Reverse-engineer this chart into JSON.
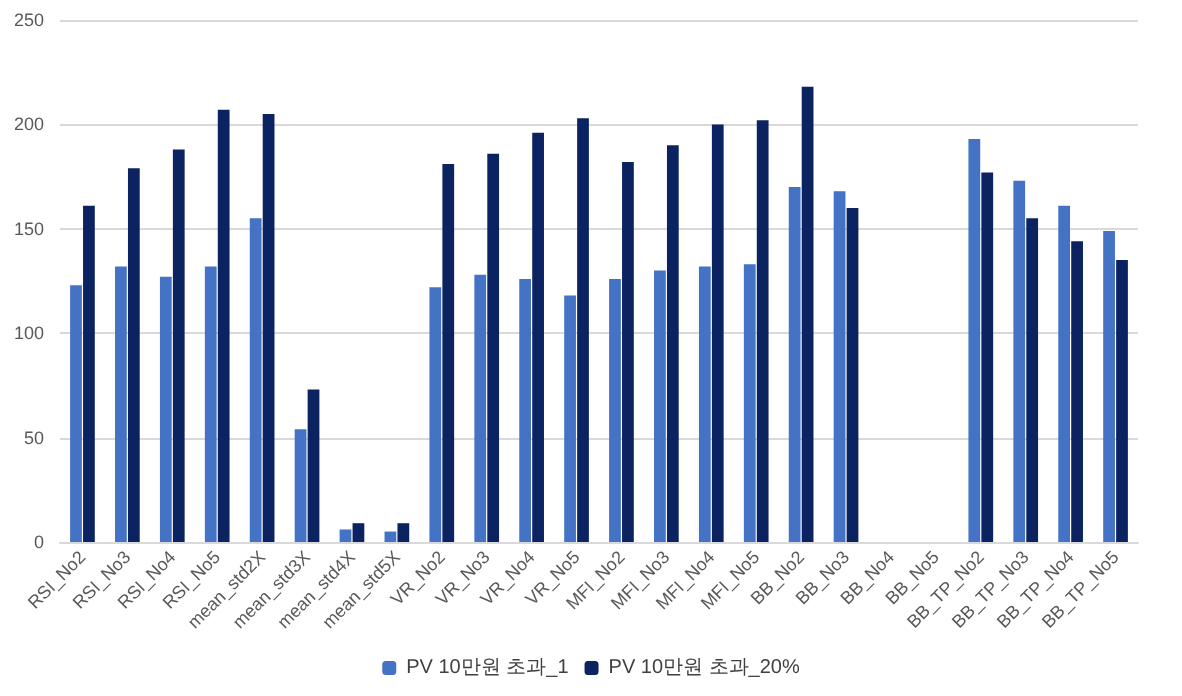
{
  "chart_data": {
    "type": "bar",
    "categories": [
      "RSI_No2",
      "RSI_No3",
      "RSI_No4",
      "RSI_No5",
      "mean_std2X",
      "mean_std3X",
      "mean_std4X",
      "mean_std5X",
      "VR_No2",
      "VR_No3",
      "VR_No4",
      "VR_No5",
      "MFI_No2",
      "MFI_No3",
      "MFI_No4",
      "MFI_No5",
      "BB_No2",
      "BB_No3",
      "BB_No4",
      "BB_No5",
      "BB_TP_No2",
      "BB_TP_No3",
      "BB_TP_No4",
      "BB_TP_No5"
    ],
    "series": [
      {
        "name": "PV 10만원 초과_1",
        "color": "#4472c4",
        "values": [
          123,
          132,
          127,
          132,
          155,
          54,
          6,
          5,
          122,
          128,
          126,
          118,
          126,
          130,
          132,
          133,
          170,
          168,
          null,
          null,
          193,
          173,
          161,
          149
        ]
      },
      {
        "name": "PV 10만원 초과_20%",
        "color": "#0c2361",
        "values": [
          161,
          179,
          188,
          207,
          205,
          73,
          9,
          9,
          181,
          186,
          196,
          203,
          182,
          190,
          200,
          202,
          218,
          160,
          null,
          null,
          177,
          155,
          144,
          135
        ]
      }
    ],
    "ylim": [
      0,
      250
    ],
    "yticks": [
      0,
      50,
      100,
      150,
      200,
      250
    ],
    "grid": "y",
    "legend": "bottom"
  }
}
